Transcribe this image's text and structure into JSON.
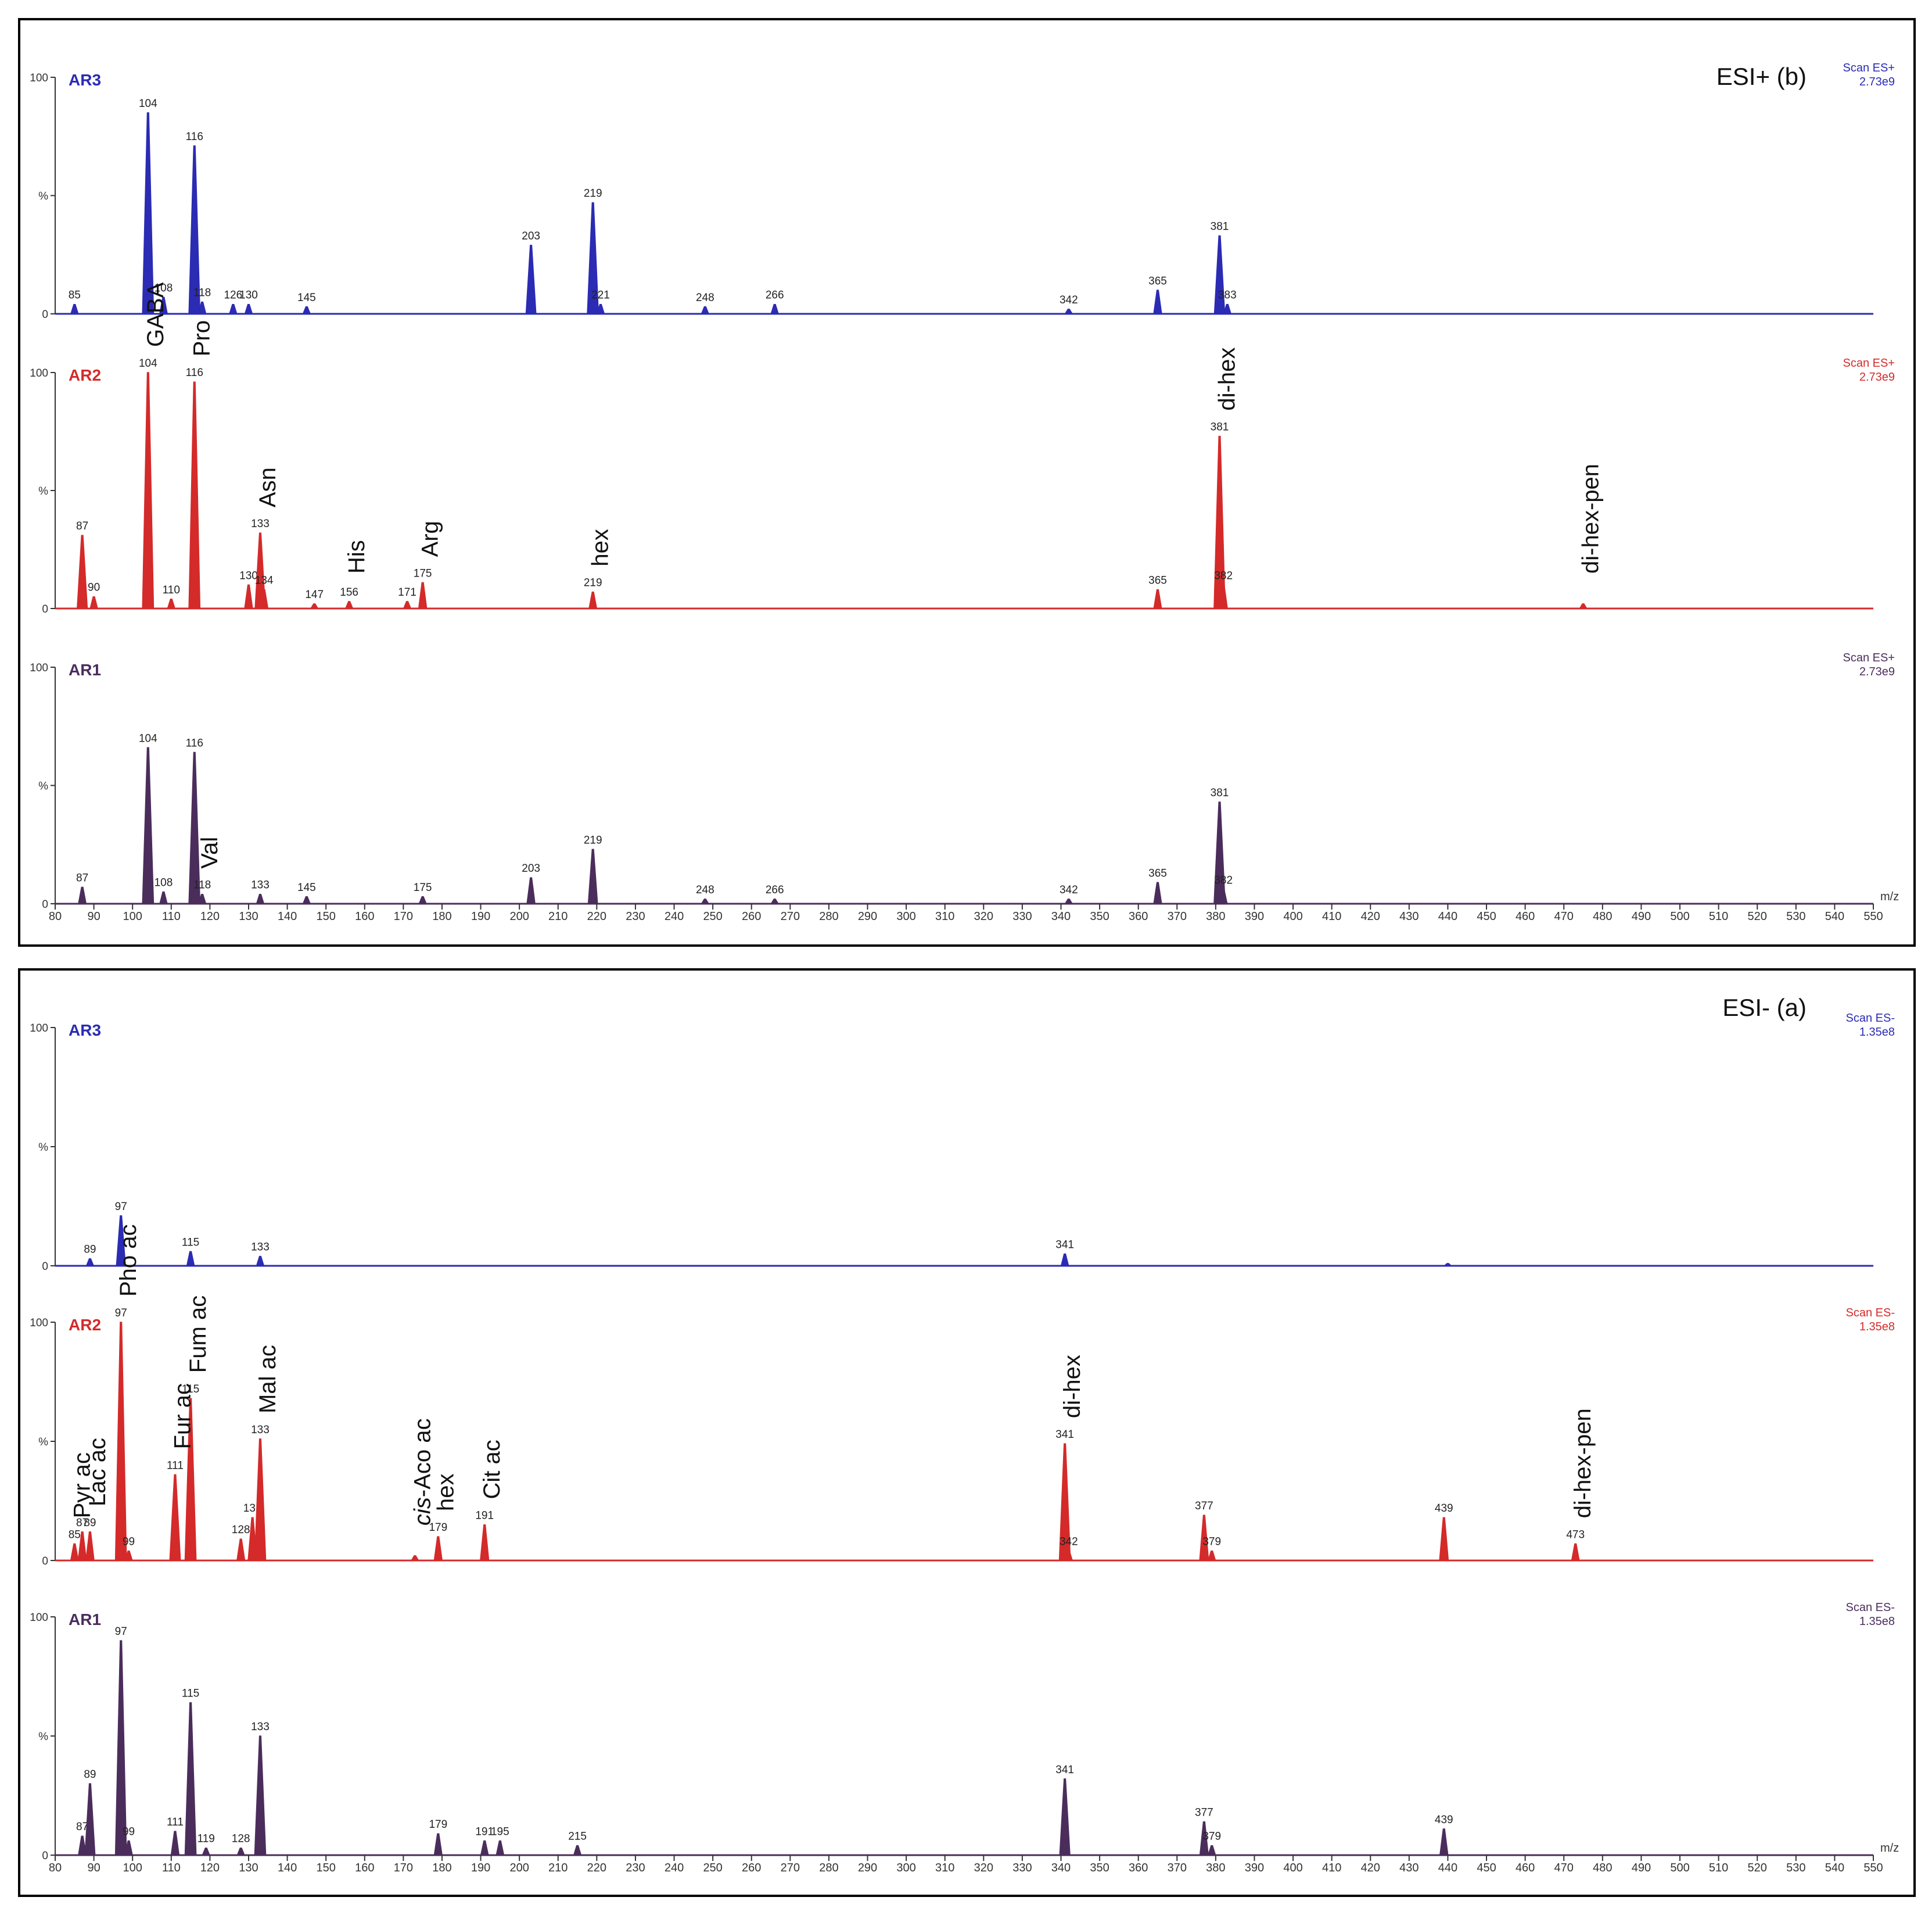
{
  "chart_data": [
    {
      "type": "line",
      "title": "ESI+ (b)",
      "xlabel": "m/z",
      "ylabel": "%",
      "xlim": [
        80,
        550
      ],
      "ylim": [
        0,
        100
      ],
      "x_ticks": [
        80,
        90,
        100,
        110,
        120,
        130,
        140,
        150,
        160,
        170,
        180,
        190,
        200,
        210,
        220,
        230,
        240,
        250,
        260,
        270,
        280,
        290,
        300,
        310,
        320,
        330,
        340,
        350,
        360,
        370,
        380,
        390,
        400,
        410,
        420,
        430,
        440,
        450,
        460,
        470,
        480,
        490,
        500,
        510,
        520,
        530,
        540,
        550
      ],
      "y_tick_labels": [
        "100",
        "%",
        "0"
      ],
      "series": [
        {
          "name": "AR3",
          "color": "#2b2bb4",
          "scan_label": "Scan ES+",
          "intensity": "2.73e9",
          "peaks": [
            {
              "mz": 85,
              "value": 4,
              "label": "85"
            },
            {
              "mz": 104,
              "value": 85,
              "label": "104"
            },
            {
              "mz": 108,
              "value": 7,
              "label": "108"
            },
            {
              "mz": 116,
              "value": 71,
              "label": "116"
            },
            {
              "mz": 118,
              "value": 5,
              "label": "118"
            },
            {
              "mz": 126,
              "value": 4,
              "label": "126"
            },
            {
              "mz": 130,
              "value": 4,
              "label": "130"
            },
            {
              "mz": 145,
              "value": 3,
              "label": "145"
            },
            {
              "mz": 203,
              "value": 29,
              "label": "203"
            },
            {
              "mz": 219,
              "value": 47,
              "label": "219"
            },
            {
              "mz": 221,
              "value": 4,
              "label": "221"
            },
            {
              "mz": 248,
              "value": 3,
              "label": "248"
            },
            {
              "mz": 266,
              "value": 4,
              "label": "266"
            },
            {
              "mz": 342,
              "value": 2,
              "label": "342"
            },
            {
              "mz": 365,
              "value": 10,
              "label": "365"
            },
            {
              "mz": 381,
              "value": 33,
              "label": "381"
            },
            {
              "mz": 383,
              "value": 4,
              "label": "383"
            }
          ],
          "annotations": []
        },
        {
          "name": "AR2",
          "color": "#d42a2a",
          "scan_label": "Scan ES+",
          "intensity": "2.73e9",
          "peaks": [
            {
              "mz": 87,
              "value": 31,
              "label": "87"
            },
            {
              "mz": 90,
              "value": 5,
              "label": "90"
            },
            {
              "mz": 104,
              "value": 100,
              "label": "104"
            },
            {
              "mz": 110,
              "value": 4,
              "label": "110"
            },
            {
              "mz": 116,
              "value": 96,
              "label": "116"
            },
            {
              "mz": 130,
              "value": 10,
              "label": "130"
            },
            {
              "mz": 133,
              "value": 32,
              "label": "133"
            },
            {
              "mz": 134,
              "value": 8,
              "label": "134"
            },
            {
              "mz": 147,
              "value": 2,
              "label": "147"
            },
            {
              "mz": 156,
              "value": 3,
              "label": "156"
            },
            {
              "mz": 171,
              "value": 3,
              "label": "171"
            },
            {
              "mz": 175,
              "value": 11,
              "label": "175"
            },
            {
              "mz": 219,
              "value": 7,
              "label": "219"
            },
            {
              "mz": 365,
              "value": 8,
              "label": "365"
            },
            {
              "mz": 381,
              "value": 73,
              "label": "381"
            },
            {
              "mz": 382,
              "value": 10,
              "label": "382"
            },
            {
              "mz": 475,
              "value": 2,
              "label": ""
            }
          ],
          "annotations": [
            {
              "mz": 104,
              "text": "GABA"
            },
            {
              "mz": 116,
              "text": "Pro"
            },
            {
              "mz": 133,
              "text": "Asn"
            },
            {
              "mz": 156,
              "text": "His"
            },
            {
              "mz": 175,
              "text": "Arg"
            },
            {
              "mz": 219,
              "text": "hex"
            },
            {
              "mz": 381,
              "text": "di-hex"
            },
            {
              "mz": 475,
              "text": "di-hex-pen"
            }
          ]
        },
        {
          "name": "AR1",
          "color": "#4b2d5c",
          "scan_label": "Scan ES+",
          "intensity": "2.73e9",
          "peaks": [
            {
              "mz": 87,
              "value": 7,
              "label": "87"
            },
            {
              "mz": 104,
              "value": 66,
              "label": "104"
            },
            {
              "mz": 108,
              "value": 5,
              "label": "108"
            },
            {
              "mz": 116,
              "value": 64,
              "label": "116"
            },
            {
              "mz": 118,
              "value": 4,
              "label": "118"
            },
            {
              "mz": 133,
              "value": 4,
              "label": "133"
            },
            {
              "mz": 145,
              "value": 3,
              "label": "145"
            },
            {
              "mz": 175,
              "value": 3,
              "label": "175"
            },
            {
              "mz": 203,
              "value": 11,
              "label": "203"
            },
            {
              "mz": 219,
              "value": 23,
              "label": "219"
            },
            {
              "mz": 248,
              "value": 2,
              "label": "248"
            },
            {
              "mz": 266,
              "value": 2,
              "label": "266"
            },
            {
              "mz": 342,
              "value": 2,
              "label": "342"
            },
            {
              "mz": 365,
              "value": 9,
              "label": "365"
            },
            {
              "mz": 381,
              "value": 43,
              "label": "381"
            },
            {
              "mz": 382,
              "value": 6,
              "label": "382"
            }
          ],
          "annotations": [
            {
              "mz": 118,
              "text": "Val"
            }
          ]
        }
      ]
    },
    {
      "type": "line",
      "title": "ESI- (a)",
      "xlabel": "m/z",
      "ylabel": "%",
      "xlim": [
        80,
        550
      ],
      "ylim": [
        0,
        100
      ],
      "x_ticks": [
        80,
        90,
        100,
        110,
        120,
        130,
        140,
        150,
        160,
        170,
        180,
        190,
        200,
        210,
        220,
        230,
        240,
        250,
        260,
        270,
        280,
        290,
        300,
        310,
        320,
        330,
        340,
        350,
        360,
        370,
        380,
        390,
        400,
        410,
        420,
        430,
        440,
        450,
        460,
        470,
        480,
        490,
        500,
        510,
        520,
        530,
        540,
        550
      ],
      "y_tick_labels": [
        "100",
        "%",
        "0"
      ],
      "series": [
        {
          "name": "AR3",
          "color": "#2b2bb4",
          "scan_label": "Scan ES-",
          "intensity": "1.35e8",
          "peaks": [
            {
              "mz": 89,
              "value": 3,
              "label": "89"
            },
            {
              "mz": 97,
              "value": 21,
              "label": "97"
            },
            {
              "mz": 115,
              "value": 6,
              "label": "115"
            },
            {
              "mz": 133,
              "value": 4,
              "label": "133"
            },
            {
              "mz": 341,
              "value": 5,
              "label": "341"
            },
            {
              "mz": 440,
              "value": 1,
              "label": ""
            }
          ],
          "annotations": []
        },
        {
          "name": "AR2",
          "color": "#d42a2a",
          "scan_label": "Scan ES-",
          "intensity": "1.35e8",
          "peaks": [
            {
              "mz": 85,
              "value": 7,
              "label": "85"
            },
            {
              "mz": 87,
              "value": 12,
              "label": "87"
            },
            {
              "mz": 89,
              "value": 12,
              "label": "89"
            },
            {
              "mz": 97,
              "value": 100,
              "label": "97"
            },
            {
              "mz": 99,
              "value": 4,
              "label": "99"
            },
            {
              "mz": 111,
              "value": 36,
              "label": "111"
            },
            {
              "mz": 115,
              "value": 68,
              "label": "115"
            },
            {
              "mz": 128,
              "value": 9,
              "label": "128"
            },
            {
              "mz": 131,
              "value": 18,
              "label": "131"
            },
            {
              "mz": 133,
              "value": 51,
              "label": "133"
            },
            {
              "mz": 173,
              "value": 2,
              "label": ""
            },
            {
              "mz": 179,
              "value": 10,
              "label": "179"
            },
            {
              "mz": 191,
              "value": 15,
              "label": "191"
            },
            {
              "mz": 341,
              "value": 49,
              "label": "341"
            },
            {
              "mz": 342,
              "value": 4,
              "label": "342"
            },
            {
              "mz": 377,
              "value": 19,
              "label": "377"
            },
            {
              "mz": 379,
              "value": 4,
              "label": "379"
            },
            {
              "mz": 439,
              "value": 18,
              "label": "439"
            },
            {
              "mz": 473,
              "value": 7,
              "label": "473"
            }
          ],
          "annotations": [
            {
              "mz": 85,
              "text": "Pyr ac",
              "italic_prefix": ""
            },
            {
              "mz": 89,
              "text": "Lac ac",
              "italic_prefix": ""
            },
            {
              "mz": 97,
              "text": "Pho ac",
              "italic_prefix": ""
            },
            {
              "mz": 111,
              "text": "Fur ac",
              "italic_prefix": ""
            },
            {
              "mz": 115,
              "text": "Fum ac",
              "italic_prefix": ""
            },
            {
              "mz": 133,
              "text": "Mal ac",
              "italic_prefix": ""
            },
            {
              "mz": 173,
              "text": "-Aco ac",
              "italic_prefix": "cis"
            },
            {
              "mz": 179,
              "text": "hex",
              "italic_prefix": ""
            },
            {
              "mz": 191,
              "text": "Cit ac",
              "italic_prefix": ""
            },
            {
              "mz": 341,
              "text": "di-hex",
              "italic_prefix": ""
            },
            {
              "mz": 473,
              "text": "di-hex-pen",
              "italic_prefix": ""
            }
          ]
        },
        {
          "name": "AR1",
          "color": "#4b2d5c",
          "scan_label": "Scan ES-",
          "intensity": "1.35e8",
          "peaks": [
            {
              "mz": 87,
              "value": 8,
              "label": "87"
            },
            {
              "mz": 89,
              "value": 30,
              "label": "89"
            },
            {
              "mz": 97,
              "value": 90,
              "label": "97"
            },
            {
              "mz": 99,
              "value": 6,
              "label": "99"
            },
            {
              "mz": 111,
              "value": 10,
              "label": "111"
            },
            {
              "mz": 115,
              "value": 64,
              "label": "115"
            },
            {
              "mz": 119,
              "value": 3,
              "label": "119"
            },
            {
              "mz": 128,
              "value": 3,
              "label": "128"
            },
            {
              "mz": 133,
              "value": 50,
              "label": "133"
            },
            {
              "mz": 179,
              "value": 9,
              "label": "179"
            },
            {
              "mz": 191,
              "value": 6,
              "label": "191"
            },
            {
              "mz": 195,
              "value": 6,
              "label": "195"
            },
            {
              "mz": 215,
              "value": 4,
              "label": "215"
            },
            {
              "mz": 341,
              "value": 32,
              "label": "341"
            },
            {
              "mz": 377,
              "value": 14,
              "label": "377"
            },
            {
              "mz": 379,
              "value": 4,
              "label": "379"
            },
            {
              "mz": 439,
              "value": 11,
              "label": "439"
            }
          ],
          "annotations": []
        }
      ]
    }
  ]
}
